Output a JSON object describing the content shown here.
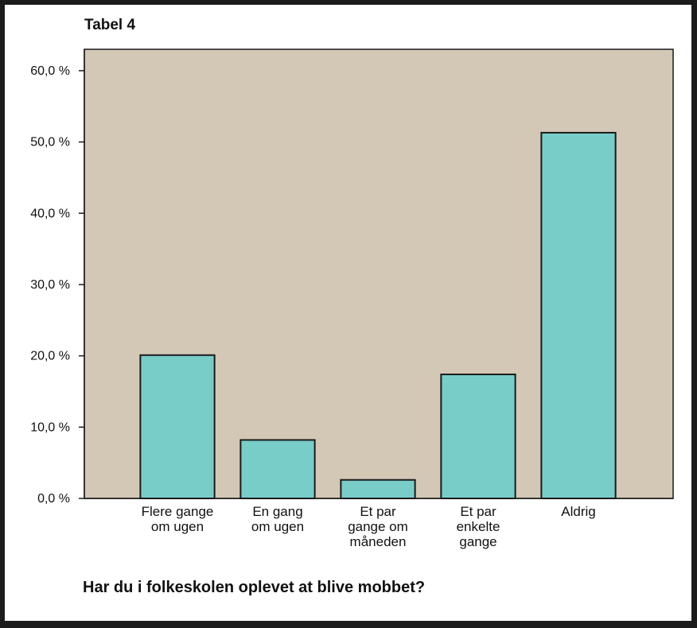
{
  "chart_data": {
    "type": "bar",
    "title": "Tabel 4",
    "xlabel": "Har du i folkeskolen oplevet at blive mobbet?",
    "ylabel": "",
    "categories": [
      [
        "Flere gange",
        "om ugen"
      ],
      [
        "En gang",
        "om ugen"
      ],
      [
        "Et par",
        "gange om",
        "måneden"
      ],
      [
        "Et par",
        "enkelte",
        "gange"
      ],
      [
        "Aldrig"
      ]
    ],
    "values": [
      20.1,
      8.2,
      2.6,
      17.4,
      51.3
    ],
    "ylim": [
      0,
      63
    ],
    "yticks": [
      0,
      10,
      20,
      30,
      40,
      50,
      60
    ],
    "ytick_labels": [
      "0,0 %",
      "10,0 %",
      "20,0 %",
      "30,0 %",
      "40,0 %",
      "50,0 %",
      "60,0 %"
    ],
    "grid": false,
    "colors": {
      "plot_background": "#d3c8b6",
      "bar_fill": "#79cdc9",
      "bar_stroke": "#1a1a1a",
      "axis": "#1a1a1a"
    }
  }
}
